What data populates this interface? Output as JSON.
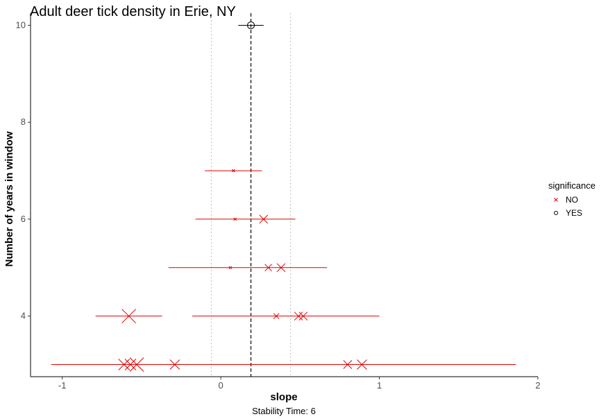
{
  "chart_data": {
    "type": "scatter",
    "title": "Adult deer tick density in Erie, NY",
    "xlabel": "slope",
    "ylabel": "Number of years in window",
    "caption": "Stability Time: 6",
    "xlim": [
      -1.2,
      2.0
    ],
    "ylim": [
      2.75,
      10.25
    ],
    "x_ticks": [
      -1,
      0,
      1,
      2
    ],
    "y_ticks": [
      4,
      6,
      8,
      10
    ],
    "grid": false,
    "reference_line": {
      "x": 0.19,
      "style": "dashed",
      "color": "#000000"
    },
    "reference_band": {
      "x": [
        -0.06,
        0.44
      ],
      "style": "dotted",
      "color": "#bdbdbd"
    },
    "legend": {
      "title": "significance",
      "placement": "right",
      "entries": [
        {
          "label": "NO",
          "shape": "x",
          "color": "#dd0000"
        },
        {
          "label": "YES",
          "shape": "circle",
          "color": "#000000"
        }
      ]
    },
    "series": [
      {
        "name": "NO",
        "color": "#dd0000",
        "points": [
          {
            "y": 7,
            "x": 0.08,
            "low": -0.1,
            "high": 0.26,
            "size": 1
          },
          {
            "y": 6,
            "x": 0.09,
            "low": -0.16,
            "high": 0.47,
            "size": 1
          },
          {
            "y": 6,
            "x": 0.27,
            "low": -0.16,
            "high": 0.47,
            "size": 5
          },
          {
            "y": 5,
            "x": 0.06,
            "low": -0.33,
            "high": 0.67,
            "size": 1
          },
          {
            "y": 5,
            "x": 0.3,
            "low": -0.33,
            "high": 0.67,
            "size": 4
          },
          {
            "y": 5,
            "x": 0.38,
            "low": -0.33,
            "high": 0.67,
            "size": 5
          },
          {
            "y": 4,
            "x": 0.35,
            "low": -0.18,
            "high": 1.0,
            "size": 3
          },
          {
            "y": 4,
            "x": 0.49,
            "low": -0.18,
            "high": 1.0,
            "size": 5
          },
          {
            "y": 4,
            "x": 0.52,
            "low": -0.18,
            "high": 1.0,
            "size": 5
          },
          {
            "y": 4,
            "x": -0.58,
            "low": -0.79,
            "high": -0.37,
            "size": 9
          },
          {
            "y": 3,
            "x": -0.61,
            "low": -1.07,
            "high": 1.86,
            "size": 7
          },
          {
            "y": 3,
            "x": -0.57,
            "low": -1.07,
            "high": 1.86,
            "size": 7
          },
          {
            "y": 3,
            "x": -0.53,
            "low": -1.07,
            "high": 1.86,
            "size": 9
          },
          {
            "y": 3,
            "x": -0.29,
            "low": -1.07,
            "high": 1.86,
            "size": 6
          },
          {
            "y": 3,
            "x": 0.8,
            "low": -1.07,
            "high": 1.86,
            "size": 5
          },
          {
            "y": 3,
            "x": 0.89,
            "low": -1.07,
            "high": 1.86,
            "size": 6
          }
        ]
      },
      {
        "name": "YES",
        "color": "#000000",
        "points": [
          {
            "y": 10,
            "x": 0.19,
            "low": 0.11,
            "high": 0.27,
            "size": 4
          }
        ]
      }
    ]
  }
}
